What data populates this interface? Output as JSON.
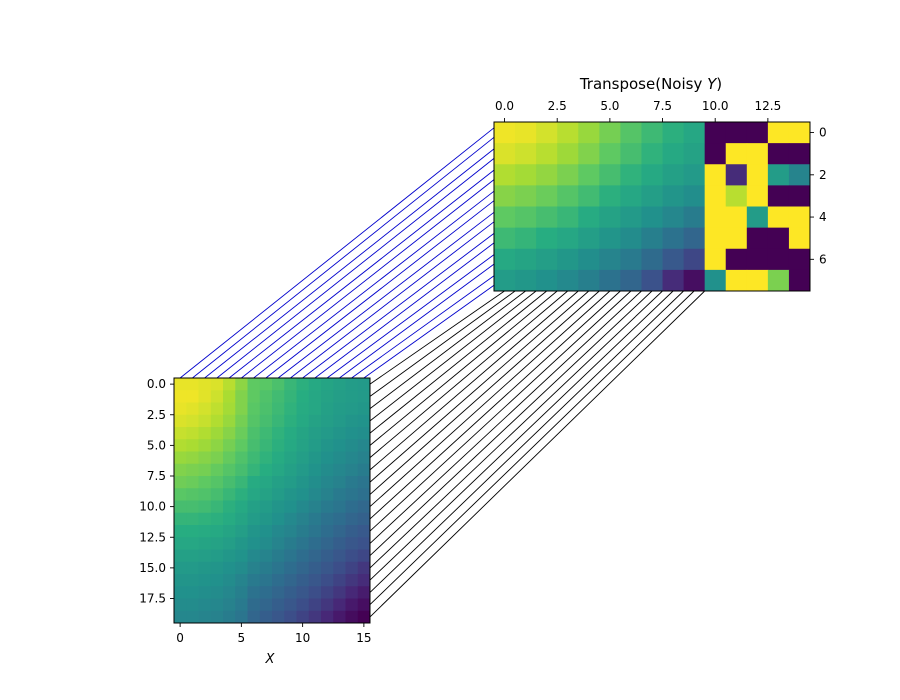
{
  "chart_data": [
    {
      "type": "heatmap",
      "title": "",
      "xlabel": "X",
      "ylabel": "",
      "rows": 20,
      "cols": 16,
      "colormap": "viridis",
      "x_ticks": [
        "0",
        "5",
        "10",
        "15"
      ],
      "y_ticks": [
        "0.0",
        "2.5",
        "5.0",
        "7.5",
        "10.0",
        "12.5",
        "15.0",
        "17.5"
      ],
      "values": [
        [
          0.97,
          0.97,
          0.96,
          0.95,
          0.9,
          0.83,
          0.75,
          0.74,
          0.71,
          0.67,
          0.64,
          0.61,
          0.59,
          0.57,
          0.55,
          0.54
        ],
        [
          0.98,
          0.98,
          0.96,
          0.93,
          0.88,
          0.81,
          0.75,
          0.72,
          0.69,
          0.66,
          0.63,
          0.6,
          0.58,
          0.56,
          0.55,
          0.54
        ],
        [
          0.97,
          0.96,
          0.94,
          0.91,
          0.87,
          0.81,
          0.74,
          0.71,
          0.68,
          0.65,
          0.62,
          0.6,
          0.57,
          0.55,
          0.54,
          0.53
        ],
        [
          0.95,
          0.94,
          0.92,
          0.89,
          0.85,
          0.79,
          0.73,
          0.7,
          0.67,
          0.64,
          0.61,
          0.58,
          0.56,
          0.54,
          0.52,
          0.51
        ],
        [
          0.92,
          0.91,
          0.89,
          0.86,
          0.82,
          0.77,
          0.71,
          0.68,
          0.65,
          0.62,
          0.59,
          0.56,
          0.54,
          0.52,
          0.5,
          0.49
        ],
        [
          0.89,
          0.88,
          0.86,
          0.83,
          0.79,
          0.75,
          0.7,
          0.67,
          0.64,
          0.61,
          0.58,
          0.55,
          0.52,
          0.5,
          0.48,
          0.46
        ],
        [
          0.85,
          0.84,
          0.82,
          0.8,
          0.76,
          0.72,
          0.68,
          0.65,
          0.62,
          0.59,
          0.56,
          0.53,
          0.5,
          0.48,
          0.46,
          0.44
        ],
        [
          0.81,
          0.8,
          0.79,
          0.76,
          0.73,
          0.7,
          0.66,
          0.63,
          0.6,
          0.57,
          0.54,
          0.51,
          0.48,
          0.46,
          0.44,
          0.42
        ],
        [
          0.78,
          0.77,
          0.75,
          0.73,
          0.7,
          0.67,
          0.62,
          0.6,
          0.57,
          0.55,
          0.52,
          0.49,
          0.46,
          0.44,
          0.41,
          0.39
        ],
        [
          0.74,
          0.73,
          0.72,
          0.7,
          0.67,
          0.64,
          0.6,
          0.58,
          0.55,
          0.52,
          0.5,
          0.47,
          0.44,
          0.41,
          0.39,
          0.37
        ],
        [
          0.7,
          0.7,
          0.69,
          0.67,
          0.64,
          0.61,
          0.57,
          0.55,
          0.52,
          0.5,
          0.47,
          0.44,
          0.41,
          0.39,
          0.36,
          0.34
        ],
        [
          0.66,
          0.66,
          0.65,
          0.64,
          0.62,
          0.59,
          0.55,
          0.53,
          0.5,
          0.47,
          0.44,
          0.41,
          0.38,
          0.36,
          0.33,
          0.31
        ],
        [
          0.63,
          0.63,
          0.62,
          0.61,
          0.59,
          0.56,
          0.52,
          0.5,
          0.47,
          0.45,
          0.42,
          0.39,
          0.36,
          0.33,
          0.3,
          0.28
        ],
        [
          0.6,
          0.6,
          0.59,
          0.58,
          0.56,
          0.53,
          0.5,
          0.48,
          0.45,
          0.42,
          0.39,
          0.36,
          0.33,
          0.3,
          0.27,
          0.25
        ],
        [
          0.57,
          0.57,
          0.56,
          0.55,
          0.53,
          0.51,
          0.47,
          0.45,
          0.42,
          0.39,
          0.36,
          0.33,
          0.3,
          0.27,
          0.24,
          0.22
        ],
        [
          0.54,
          0.54,
          0.53,
          0.52,
          0.5,
          0.48,
          0.44,
          0.42,
          0.39,
          0.36,
          0.33,
          0.3,
          0.27,
          0.24,
          0.21,
          0.18
        ],
        [
          0.52,
          0.52,
          0.51,
          0.5,
          0.48,
          0.45,
          0.41,
          0.39,
          0.36,
          0.33,
          0.3,
          0.27,
          0.24,
          0.21,
          0.18,
          0.15
        ],
        [
          0.5,
          0.5,
          0.49,
          0.48,
          0.46,
          0.43,
          0.38,
          0.36,
          0.33,
          0.3,
          0.27,
          0.24,
          0.21,
          0.18,
          0.14,
          0.1
        ],
        [
          0.48,
          0.48,
          0.47,
          0.46,
          0.44,
          0.41,
          0.35,
          0.33,
          0.3,
          0.27,
          0.24,
          0.21,
          0.18,
          0.14,
          0.09,
          0.05
        ],
        [
          0.46,
          0.46,
          0.45,
          0.44,
          0.42,
          0.39,
          0.33,
          0.3,
          0.27,
          0.24,
          0.21,
          0.18,
          0.14,
          0.09,
          0.04,
          0.0
        ]
      ]
    },
    {
      "type": "heatmap",
      "title_prefix": "Transpose(Noisy ",
      "title_var": "Y",
      "title_suffix": ")",
      "xlabel": "",
      "ylabel": "",
      "rows": 8,
      "cols": 15,
      "colormap": "viridis",
      "x_ticks": [
        "0.0",
        "2.5",
        "5.0",
        "7.5",
        "10.0",
        "12.5"
      ],
      "y_ticks": [
        "0",
        "2",
        "4",
        "6"
      ],
      "values": [
        [
          0.98,
          0.97,
          0.94,
          0.9,
          0.85,
          0.79,
          0.73,
          0.68,
          0.64,
          0.6,
          0.0,
          0.0,
          0.0,
          1.0,
          1.0
        ],
        [
          0.95,
          0.93,
          0.9,
          0.86,
          0.81,
          0.75,
          0.7,
          0.65,
          0.61,
          0.58,
          0.0,
          1.0,
          1.0,
          0.0,
          0.0
        ],
        [
          0.89,
          0.87,
          0.84,
          0.8,
          0.75,
          0.7,
          0.65,
          0.61,
          0.57,
          0.54,
          1.0,
          0.15,
          1.0,
          0.55,
          0.45
        ],
        [
          0.82,
          0.8,
          0.77,
          0.73,
          0.69,
          0.64,
          0.6,
          0.56,
          0.52,
          0.49,
          1.0,
          0.9,
          1.0,
          0.0,
          0.0
        ],
        [
          0.75,
          0.73,
          0.7,
          0.67,
          0.62,
          0.58,
          0.54,
          0.5,
          0.46,
          0.42,
          1.0,
          1.0,
          0.55,
          1.0,
          1.0
        ],
        [
          0.68,
          0.66,
          0.63,
          0.6,
          0.56,
          0.52,
          0.48,
          0.43,
          0.38,
          0.33,
          1.0,
          1.0,
          0.0,
          0.0,
          1.0
        ],
        [
          0.61,
          0.59,
          0.56,
          0.53,
          0.49,
          0.45,
          0.41,
          0.35,
          0.28,
          0.22,
          1.0,
          0.0,
          0.0,
          0.0,
          0.0
        ],
        [
          0.55,
          0.53,
          0.5,
          0.47,
          0.43,
          0.38,
          0.33,
          0.25,
          0.15,
          0.05,
          0.5,
          1.0,
          1.0,
          0.8,
          0.0
        ]
      ]
    }
  ],
  "connectors": {
    "blue_color": "#0000cc",
    "black_color": "#000000"
  }
}
